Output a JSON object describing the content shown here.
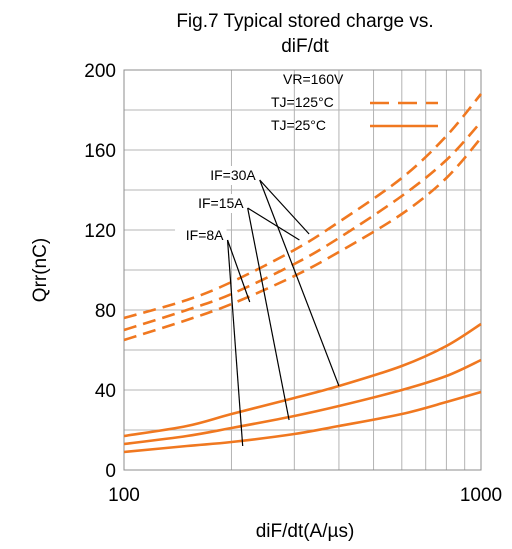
{
  "chart_data": {
    "type": "line",
    "title_line1": "Fig.7 Typical stored charge vs.",
    "title_line2": "diF/dt",
    "xlabel": "diF/dt(A/µs)",
    "ylabel": "Qrr(nC)",
    "x_scale": "log",
    "xlim": [
      100,
      1000
    ],
    "ylim": [
      0,
      200
    ],
    "x_ticks": [
      {
        "value": 100,
        "label": "100"
      },
      {
        "value": 1000,
        "label": "1000"
      }
    ],
    "y_ticks": [
      {
        "value": 0,
        "label": "0"
      },
      {
        "value": 40,
        "label": "40"
      },
      {
        "value": 80,
        "label": "80"
      },
      {
        "value": 120,
        "label": "120"
      },
      {
        "value": 160,
        "label": "160"
      },
      {
        "value": 200,
        "label": "200"
      }
    ],
    "grid": true,
    "line_color": "#f07820",
    "legend": {
      "condition": "VR=160V",
      "entries": [
        {
          "label": "TJ=125°C",
          "style": "dashed"
        },
        {
          "label": "TJ=25°C",
          "style": "solid"
        }
      ]
    },
    "series": [
      {
        "style": "dashed",
        "group": "IF=30A",
        "x": [
          100,
          150,
          200,
          300,
          400,
          600,
          800,
          1000
        ],
        "y": [
          76,
          85,
          94,
          110,
          124,
          146,
          167,
          188
        ]
      },
      {
        "style": "dashed",
        "group": "IF=15A",
        "x": [
          100,
          150,
          200,
          300,
          400,
          600,
          800,
          1000
        ],
        "y": [
          70,
          80,
          88,
          103,
          116,
          137,
          155,
          174
        ]
      },
      {
        "style": "dashed",
        "group": "IF=8A",
        "x": [
          100,
          150,
          200,
          300,
          400,
          600,
          800,
          1000
        ],
        "y": [
          65,
          75,
          83,
          97,
          109,
          128,
          146,
          166
        ]
      },
      {
        "style": "solid",
        "group": "IF=30A",
        "x": [
          100,
          150,
          200,
          300,
          400,
          600,
          800,
          1000
        ],
        "y": [
          17,
          22,
          28,
          36,
          42,
          52,
          62,
          73
        ]
      },
      {
        "style": "solid",
        "group": "IF=15A",
        "x": [
          100,
          150,
          200,
          300,
          400,
          600,
          800,
          1000
        ],
        "y": [
          13,
          17,
          21,
          27,
          32,
          40,
          47,
          55
        ]
      },
      {
        "style": "solid",
        "group": "IF=8A",
        "x": [
          100,
          150,
          200,
          300,
          400,
          600,
          800,
          1000
        ],
        "y": [
          9,
          12,
          14,
          18,
          22,
          28,
          34,
          39
        ]
      }
    ],
    "annotations": [
      {
        "label": "IF=30A",
        "anchor": [
          240,
          145
        ],
        "targets": [
          [
            330,
            118
          ],
          [
            400,
            42
          ]
        ]
      },
      {
        "label": "IF=15A",
        "anchor": [
          222,
          131
        ],
        "targets": [
          [
            310,
            115
          ],
          [
            290,
            25
          ]
        ]
      },
      {
        "label": "IF=8A",
        "anchor": [
          195,
          115
        ],
        "targets": [
          [
            225,
            84
          ],
          [
            215,
            12
          ]
        ]
      }
    ]
  }
}
